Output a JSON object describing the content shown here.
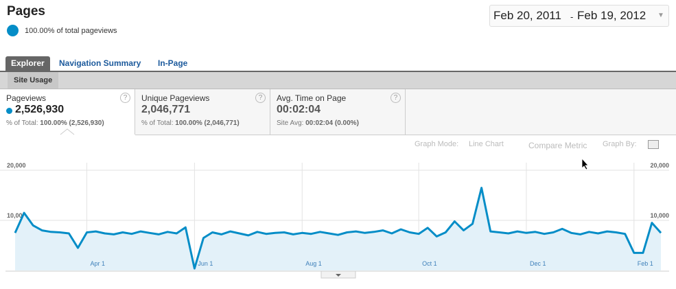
{
  "header": {
    "title": "Pages",
    "subtitle": "100.00% of total pageviews"
  },
  "date_range": {
    "start": "Feb 20, 2011",
    "separator": "-",
    "end": "Feb 19, 2012"
  },
  "tabs": [
    "Explorer",
    "Navigation Summary",
    "In-Page"
  ],
  "subtab": "Site Usage",
  "metrics": [
    {
      "label": "Pageviews",
      "value": "2,526,930",
      "sub_label": "% of Total:",
      "sub_value": "100.00% (2,526,930)",
      "help": "?"
    },
    {
      "label": "Unique Pageviews",
      "value": "2,046,771",
      "sub_label": "% of Total:",
      "sub_value": "100.00% (2,046,771)",
      "help": "?"
    },
    {
      "label": "Avg. Time on Page",
      "value": "00:02:04",
      "sub_label": "Site Avg:",
      "sub_value": "00:02:04 (0.00%)",
      "help": "?"
    }
  ],
  "graph_controls": {
    "mode_label": "Graph Mode:",
    "mode": "Line Chart",
    "compare": "Compare Metric",
    "by_label": "Graph By:"
  },
  "chart_data": {
    "type": "line",
    "categories": [
      null,
      null,
      null,
      null,
      null,
      null,
      null,
      null,
      "Apr 1",
      null,
      null,
      null,
      null,
      null,
      null,
      null,
      null,
      null,
      null,
      null,
      "Jun 1",
      null,
      null,
      null,
      null,
      null,
      null,
      null,
      null,
      null,
      null,
      null,
      "Aug 1",
      null,
      null,
      null,
      null,
      null,
      null,
      null,
      null,
      null,
      null,
      null,
      null,
      "Oct 1",
      null,
      null,
      null,
      null,
      null,
      null,
      null,
      null,
      null,
      null,
      null,
      "Dec 1",
      null,
      null,
      null,
      null,
      null,
      null,
      null,
      null,
      null,
      null,
      null,
      "Feb 1",
      null,
      null,
      null
    ],
    "series": [
      {
        "name": "Pageviews",
        "color": "#058dc7",
        "values": [
          7500,
          11500,
          9000,
          8000,
          7700,
          7600,
          7400,
          4500,
          7600,
          7800,
          7400,
          7200,
          7600,
          7300,
          7800,
          7500,
          7200,
          7700,
          7400,
          8600,
          400,
          6500,
          7600,
          7200,
          7800,
          7400,
          7000,
          7700,
          7300,
          7500,
          7600,
          7200,
          7500,
          7300,
          7700,
          7400,
          7100,
          7600,
          7800,
          7500,
          7700,
          8000,
          7400,
          8200,
          7600,
          7300,
          8500,
          6800,
          7600,
          9800,
          8000,
          9300,
          16500,
          7800,
          7600,
          7400,
          7800,
          7500,
          7700,
          7300,
          7600,
          8300,
          7500,
          7200,
          7700,
          7400,
          7800,
          7600,
          7300,
          3500,
          3500,
          9500,
          7500
        ]
      }
    ],
    "ylim": [
      0,
      20000
    ],
    "yticks": [
      {
        "value": 10000,
        "label": "10,000"
      },
      {
        "value": 20000,
        "label": "20,000"
      }
    ],
    "grid": true
  }
}
